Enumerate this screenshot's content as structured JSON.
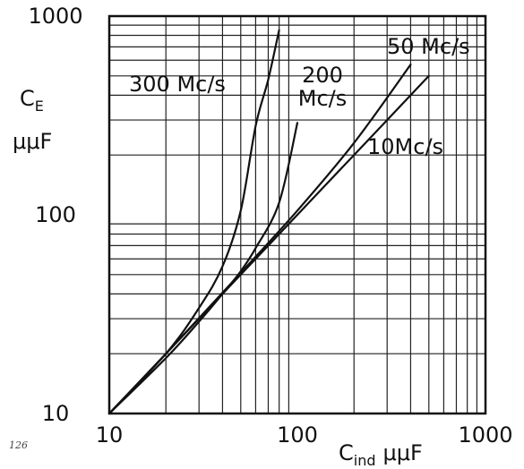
{
  "chart_data": {
    "type": "line",
    "xscale": "log",
    "yscale": "log",
    "xlim": [
      10,
      1000
    ],
    "ylim": [
      10,
      1000
    ],
    "grid": true,
    "xlabel": "C",
    "xlabel_sub": "ind",
    "xlabel_unit": "μμF",
    "ylabel": "C",
    "ylabel_sub": "E",
    "ylabel_unit": "μμF",
    "x_ticks": [
      {
        "value": 10,
        "label": "10"
      },
      {
        "value": 100,
        "label": "100"
      },
      {
        "value": 1000,
        "label": "1000"
      }
    ],
    "y_ticks": [
      {
        "value": 10,
        "label": "10"
      },
      {
        "value": 100,
        "label": "100"
      },
      {
        "value": 1000,
        "label": "1000"
      }
    ],
    "series": [
      {
        "name": "300 Mc/s",
        "label_parts": [
          "300 Mc/s"
        ],
        "x": [
          10,
          20,
          30,
          40,
          50,
          60,
          70,
          80
        ],
        "y": [
          10,
          20,
          34,
          55,
          105,
          280,
          480,
          850
        ]
      },
      {
        "name": "200 Mc/s",
        "label_parts": [
          "200",
          "Mc/s"
        ],
        "x": [
          10,
          20,
          30,
          40,
          50,
          60,
          80,
          100
        ],
        "y": [
          10,
          19,
          29,
          40,
          52,
          68,
          115,
          290
        ]
      },
      {
        "name": "50 Mc/s",
        "label_parts": [
          "50 Mc/s"
        ],
        "x": [
          10,
          20,
          50,
          100,
          200,
          400
        ],
        "y": [
          10,
          20,
          51,
          105,
          230,
          570
        ]
      },
      {
        "name": "10Mc/s",
        "label_parts": [
          "10Mc/s"
        ],
        "x": [
          10,
          20,
          50,
          100,
          200,
          500
        ],
        "y": [
          10,
          20,
          50,
          100,
          200,
          500
        ]
      }
    ]
  },
  "page_number": "126"
}
